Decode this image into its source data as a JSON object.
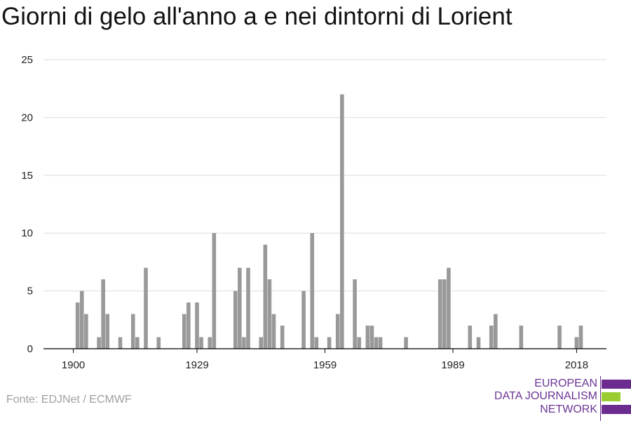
{
  "title": "Giorni di gelo all'anno a e nei dintorni di Lorient",
  "source": "Fonte: EDJNet / ECMWF",
  "logo": {
    "lines": [
      "EUROPEAN",
      "DATA JOURNALISM",
      "NETWORK"
    ],
    "colors": {
      "purple": "#6b2b8f",
      "green": "#9acd32"
    }
  },
  "colors": {
    "bar": "#999999",
    "grid": "#dddddd",
    "axis": "#000000"
  },
  "chart_data": {
    "type": "bar",
    "title": "Giorni di gelo all'anno a e nei dintorni di Lorient",
    "xlabel": "",
    "ylabel": "",
    "xlim": [
      1893,
      2025
    ],
    "ylim": [
      0,
      25
    ],
    "grid": true,
    "x_ticks": [
      1900,
      1929,
      1959,
      1989,
      2018
    ],
    "y_ticks": [
      0,
      5,
      10,
      15,
      20,
      25
    ],
    "x": [
      1900,
      1901,
      1902,
      1903,
      1904,
      1905,
      1906,
      1907,
      1908,
      1909,
      1910,
      1911,
      1912,
      1913,
      1914,
      1915,
      1916,
      1917,
      1918,
      1919,
      1920,
      1921,
      1922,
      1923,
      1924,
      1925,
      1926,
      1927,
      1928,
      1929,
      1930,
      1931,
      1932,
      1933,
      1934,
      1935,
      1936,
      1937,
      1938,
      1939,
      1940,
      1941,
      1942,
      1943,
      1944,
      1945,
      1946,
      1947,
      1948,
      1949,
      1950,
      1951,
      1952,
      1953,
      1954,
      1955,
      1956,
      1957,
      1958,
      1959,
      1960,
      1961,
      1962,
      1963,
      1964,
      1965,
      1966,
      1967,
      1968,
      1969,
      1970,
      1971,
      1972,
      1973,
      1974,
      1975,
      1976,
      1977,
      1978,
      1979,
      1980,
      1981,
      1982,
      1983,
      1984,
      1985,
      1986,
      1987,
      1988,
      1989,
      1990,
      1991,
      1992,
      1993,
      1994,
      1995,
      1996,
      1997,
      1998,
      1999,
      2000,
      2001,
      2002,
      2003,
      2004,
      2005,
      2006,
      2007,
      2008,
      2009,
      2010,
      2011,
      2012,
      2013,
      2014,
      2015,
      2016,
      2017,
      2018,
      2019
    ],
    "values": [
      0,
      4,
      5,
      3,
      0,
      0,
      1,
      6,
      3,
      0,
      0,
      1,
      0,
      0,
      3,
      1,
      0,
      7,
      0,
      0,
      1,
      0,
      0,
      0,
      0,
      0,
      3,
      4,
      0,
      4,
      1,
      0,
      1,
      10,
      0,
      0,
      0,
      0,
      5,
      7,
      1,
      7,
      0,
      0,
      1,
      9,
      6,
      3,
      0,
      2,
      0,
      0,
      0,
      0,
      5,
      0,
      10,
      1,
      0,
      0,
      1,
      0,
      3,
      22,
      0,
      0,
      6,
      1,
      0,
      2,
      2,
      1,
      1,
      0,
      0,
      0,
      0,
      0,
      1,
      0,
      0,
      0,
      0,
      0,
      0,
      0,
      6,
      6,
      7,
      0,
      0,
      0,
      0,
      2,
      0,
      1,
      0,
      0,
      2,
      3,
      0,
      0,
      0,
      0,
      0,
      2,
      0,
      0,
      0,
      0,
      0,
      0,
      0,
      0,
      2,
      0,
      0,
      0,
      1,
      2
    ]
  }
}
